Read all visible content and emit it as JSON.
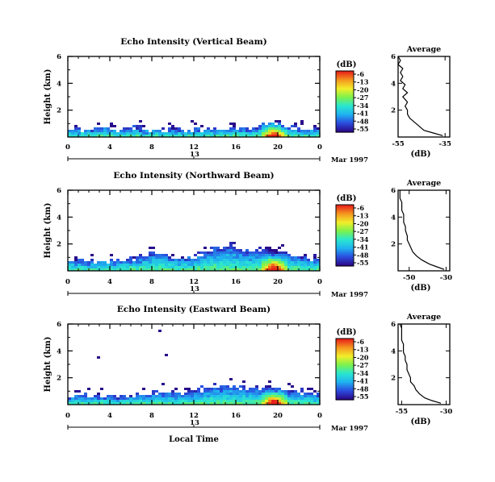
{
  "xlabel": "Local Time",
  "date_label": "Mar 1997",
  "ylabel": "Height (km)",
  "cb_label": "(dB)",
  "avg_title": "Average",
  "avg_xlabel": "(dB)",
  "x_ticks": [
    "0",
    "4",
    "8",
    "12",
    "16",
    "20",
    "0"
  ],
  "day_ticks": [
    "13",
    "13",
    "13"
  ],
  "y_ticks": [
    "2",
    "4",
    "6"
  ],
  "cb_ticks": [
    "-6",
    "-13",
    "-20",
    "-27",
    "-34",
    "-41",
    "-48",
    "-55"
  ],
  "colorscale": [
    "#2a0a8a",
    "#2b4ee0",
    "#1fb4f0",
    "#2be6d0",
    "#7cf24c",
    "#f2ee2a",
    "#f59a20",
    "#e8221a"
  ],
  "chart_data": [
    {
      "type": "heatmap",
      "title": "Echo Intensity (Vertical Beam)",
      "x_range_hours": [
        0,
        24
      ],
      "y_range_km": [
        0,
        6
      ],
      "color_range_db": [
        -55,
        -6
      ],
      "layer_top_km": [
        0.6,
        0.7,
        0.6,
        0.8,
        0.7,
        0.6,
        0.8,
        0.7,
        0.6,
        0.6,
        0.7,
        0.6,
        0.7,
        0.6,
        0.6,
        0.7,
        0.8,
        0.7,
        0.9,
        1.1,
        1.0,
        0.8,
        0.7,
        0.7,
        0.6
      ],
      "avg_profile": {
        "title": "Average",
        "xlabel": "(dB)",
        "x_ticks": [
          -55,
          -35
        ],
        "x_range": [
          -55,
          -33
        ],
        "y_range": [
          0,
          6
        ],
        "y_ticks": [
          2,
          4,
          6
        ],
        "height_km": [
          0.1,
          0.3,
          0.5,
          0.8,
          1.1,
          1.4,
          1.7,
          2.0,
          2.3,
          2.6,
          3.0,
          3.3,
          3.6,
          3.9,
          4.2,
          4.5,
          4.8,
          5.1,
          5.4,
          5.7,
          6.0
        ],
        "db": [
          -36,
          -40,
          -44,
          -46,
          -48,
          -50,
          -51,
          -51,
          -52,
          -51,
          -53,
          -51,
          -53,
          -52,
          -54,
          -53,
          -54,
          -53,
          -55,
          -54,
          -55
        ]
      }
    },
    {
      "type": "heatmap",
      "title": "Echo Intensity (Northward Beam)",
      "x_range_hours": [
        0,
        24
      ],
      "y_range_km": [
        0,
        6
      ],
      "color_range_db": [
        -55,
        -6
      ],
      "layer_top_km": [
        0.8,
        0.9,
        0.8,
        0.9,
        0.8,
        0.9,
        1.0,
        1.2,
        1.5,
        1.4,
        1.0,
        1.0,
        1.2,
        1.5,
        1.8,
        1.9,
        1.7,
        1.5,
        1.6,
        1.8,
        1.7,
        1.4,
        1.2,
        1.0,
        0.9
      ],
      "avg_profile": {
        "title": "Average",
        "xlabel": "(dB)",
        "x_ticks": [
          -50,
          -30
        ],
        "x_range": [
          -56,
          -28
        ],
        "y_range": [
          0,
          6
        ],
        "y_ticks": [
          2,
          4,
          6
        ],
        "height_km": [
          0.1,
          0.3,
          0.5,
          0.8,
          1.1,
          1.4,
          1.7,
          2.0,
          2.3,
          2.6,
          3.0,
          3.3,
          3.6,
          3.9,
          4.2,
          4.5,
          4.8,
          5.1,
          5.4,
          5.7,
          6.0
        ],
        "db": [
          -31,
          -35,
          -39,
          -43,
          -46,
          -48,
          -49,
          -50,
          -51,
          -51,
          -52,
          -52,
          -53,
          -53,
          -53,
          -54,
          -54,
          -54,
          -55,
          -55,
          -55
        ]
      }
    },
    {
      "type": "heatmap",
      "title": "Echo Intensity (Eastward Beam)",
      "x_range_hours": [
        0,
        24
      ],
      "y_range_km": [
        0,
        6
      ],
      "color_range_db": [
        -55,
        -6
      ],
      "layer_top_km": [
        0.7,
        0.8,
        0.7,
        0.8,
        0.7,
        0.7,
        0.8,
        0.9,
        1.0,
        1.0,
        0.9,
        1.0,
        1.1,
        1.3,
        1.4,
        1.5,
        1.4,
        1.3,
        1.3,
        1.4,
        1.3,
        1.1,
        1.0,
        0.9,
        0.8
      ],
      "avg_profile": {
        "title": "Average",
        "xlabel": "(dB)",
        "x_ticks": [
          -55,
          -30
        ],
        "x_range": [
          -57,
          -28
        ],
        "y_range": [
          0,
          6
        ],
        "y_ticks": [
          2,
          4,
          6
        ],
        "height_km": [
          0.1,
          0.3,
          0.5,
          0.8,
          1.1,
          1.4,
          1.7,
          2.0,
          2.3,
          2.6,
          3.0,
          3.3,
          3.6,
          3.9,
          4.2,
          4.5,
          4.8,
          5.1,
          5.4,
          5.7,
          6.0
        ],
        "db": [
          -33,
          -38,
          -42,
          -45,
          -47,
          -48,
          -50,
          -50,
          -51,
          -52,
          -52,
          -53,
          -53,
          -54,
          -54,
          -54,
          -55,
          -55,
          -55,
          -55,
          -56
        ]
      }
    }
  ]
}
